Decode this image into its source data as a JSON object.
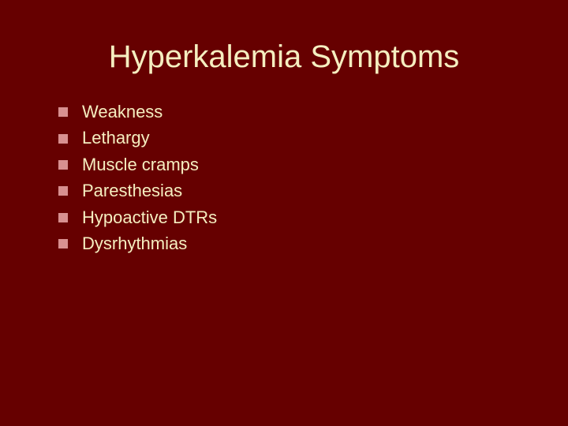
{
  "slide": {
    "title": "Hyperkalemia Symptoms",
    "items": [
      "Weakness",
      "Lethargy",
      "Muscle cramps",
      "Paresthesias",
      "Hypoactive DTRs",
      "Dysrhythmias"
    ]
  },
  "style": {
    "background_color": "#660000",
    "title_color": "#f5eec0",
    "text_color": "#f5eec0",
    "bullet_color": "#d89090",
    "title_fontsize": 40,
    "item_fontsize": 22,
    "bullet_size": 12
  }
}
